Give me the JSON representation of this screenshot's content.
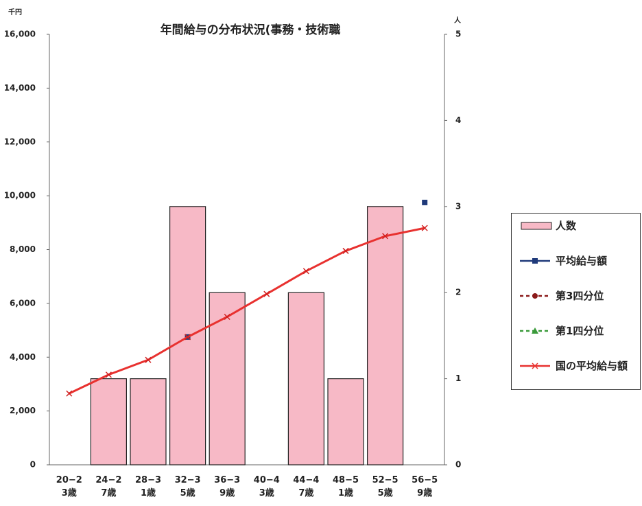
{
  "chart_data": {
    "type": "bar",
    "title": "年間給与の分布状況(事務・技術職",
    "y_unit": "千円",
    "y2_unit": "人",
    "categories": [
      "20−23歳",
      "24−27歳",
      "28−31歳",
      "32−35歳",
      "36−39歳",
      "40−43歳",
      "44−47歳",
      "48−51歳",
      "52−55歳",
      "56−59歳"
    ],
    "ylim": [
      0,
      16000
    ],
    "yticks": [
      0,
      {
        "value": 2000,
        "label": "2,000"
      },
      {
        "value": 4000,
        "label": "4,000"
      },
      {
        "value": 6000,
        "label": "6,000"
      },
      {
        "value": 8000,
        "label": "8,000"
      },
      {
        "value": 10000,
        "label": "10,000"
      },
      {
        "value": 12000,
        "label": "12,000"
      },
      {
        "value": 14000,
        "label": "14,000"
      },
      {
        "value": 16000,
        "label": "16,000"
      }
    ],
    "y2lim": [
      0,
      5
    ],
    "y2ticks": [
      0,
      1,
      2,
      3,
      4,
      5
    ],
    "grid": false,
    "legend": "right",
    "series": [
      {
        "name": "人数",
        "type": "bar",
        "axis": "y2",
        "color": "#f7b9c6",
        "values": [
          null,
          1,
          1,
          3,
          2,
          null,
          2,
          1,
          3,
          null
        ]
      },
      {
        "name": "平均給与額",
        "type": "line",
        "axis": "y",
        "color": "#1f3a7a",
        "marker": "square",
        "line": "none",
        "values": [
          null,
          null,
          null,
          4750,
          null,
          null,
          null,
          null,
          null,
          9750
        ]
      },
      {
        "name": "第3四分位",
        "type": "line",
        "axis": "y",
        "color": "#8b1a1a",
        "marker": "circle",
        "line": "dashed",
        "values": [
          null,
          null,
          null,
          null,
          null,
          null,
          null,
          null,
          null,
          null
        ]
      },
      {
        "name": "第1四分位",
        "type": "line",
        "axis": "y",
        "color": "#3a9a3a",
        "marker": "triangle",
        "line": "dashed",
        "values": [
          null,
          null,
          null,
          null,
          null,
          null,
          null,
          null,
          null,
          null
        ]
      },
      {
        "name": "国の平均給与額",
        "type": "line",
        "axis": "y",
        "color": "#e8312f",
        "marker": "x",
        "line": "solid",
        "values": [
          2650,
          3350,
          3900,
          4750,
          5500,
          6350,
          7200,
          7950,
          8500,
          8800
        ]
      }
    ]
  }
}
